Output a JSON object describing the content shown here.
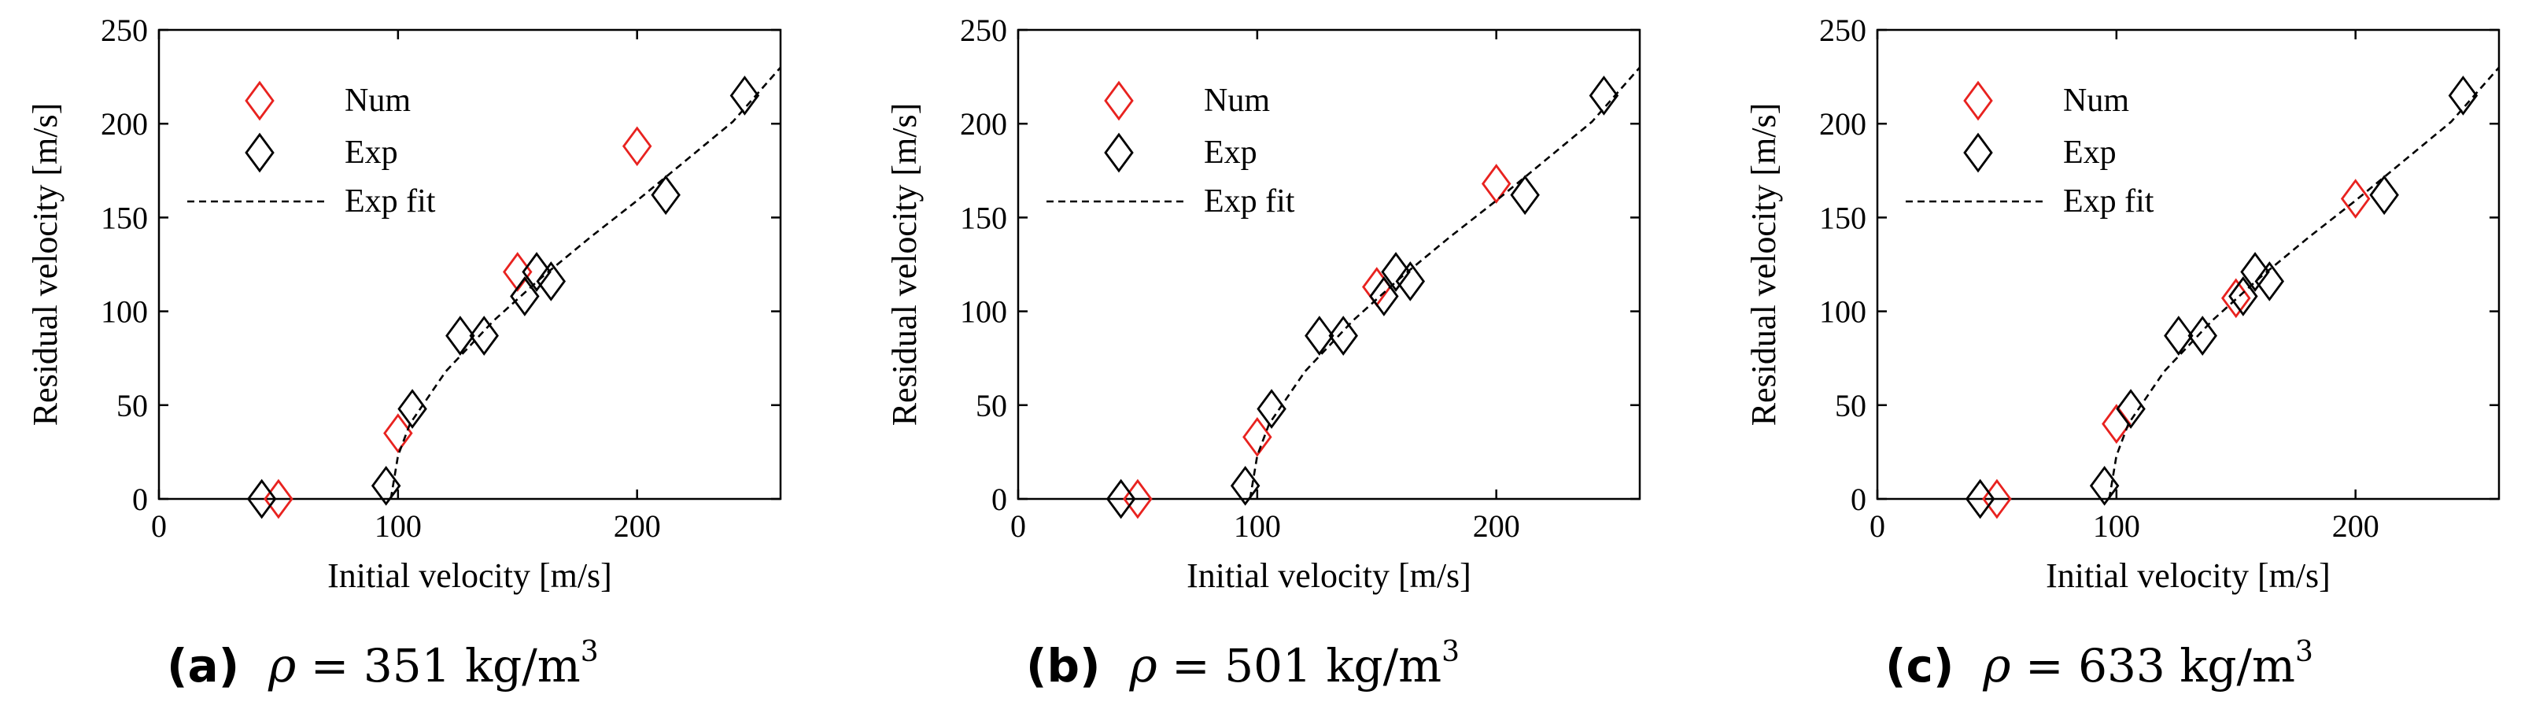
{
  "chart_data": [
    {
      "type": "scatter",
      "caption_letter": "a",
      "caption_symbol": "ρ",
      "caption_value": "351",
      "caption_unit": "kg/m",
      "caption_exp": "3",
      "xlabel": "Initial velocity [m/s]",
      "ylabel": "Residual velocity [m/s]",
      "xlim": [
        0,
        260
      ],
      "ylim": [
        0,
        250
      ],
      "xticks": [
        "0",
        "100",
        "200"
      ],
      "yticks": [
        "0",
        "50",
        "100",
        "150",
        "200",
        "250"
      ],
      "legend_position": "top-left",
      "series": [
        {
          "name": "Num",
          "color": "#e8221f",
          "marker": "diamond",
          "points": [
            [
              50,
              0
            ],
            [
              100,
              35
            ],
            [
              150,
              121
            ],
            [
              200,
              188
            ]
          ]
        },
        {
          "name": "Exp",
          "color": "#000000",
          "marker": "diamond",
          "points": [
            [
              43,
              0
            ],
            [
              95,
              7
            ],
            [
              106,
              48
            ],
            [
              126,
              87
            ],
            [
              136,
              87
            ],
            [
              153,
              108
            ],
            [
              158,
              121
            ],
            [
              164,
              116
            ],
            [
              212,
              162
            ],
            [
              245,
              215
            ]
          ]
        },
        {
          "name": "Exp fit",
          "color": "#000000",
          "line": "dashed",
          "points": [
            [
              97,
              0
            ],
            [
              100,
              23
            ],
            [
              105,
              40
            ],
            [
              120,
              68
            ],
            [
              140,
              95
            ],
            [
              160,
              118
            ],
            [
              180,
              139
            ],
            [
              200,
              159
            ],
            [
              220,
              180
            ],
            [
              240,
              201
            ],
            [
              260,
              230
            ]
          ]
        }
      ]
    },
    {
      "type": "scatter",
      "caption_letter": "b",
      "caption_symbol": "ρ",
      "caption_value": "501",
      "caption_unit": "kg/m",
      "caption_exp": "3",
      "xlabel": "Initial velocity [m/s]",
      "ylabel": "Residual velocity [m/s]",
      "xlim": [
        0,
        260
      ],
      "ylim": [
        0,
        250
      ],
      "xticks": [
        "0",
        "100",
        "200"
      ],
      "yticks": [
        "0",
        "50",
        "100",
        "150",
        "200",
        "250"
      ],
      "legend_position": "top-left",
      "series": [
        {
          "name": "Num",
          "color": "#e8221f",
          "marker": "diamond",
          "points": [
            [
              50,
              0
            ],
            [
              100,
              33
            ],
            [
              150,
              113
            ],
            [
              200,
              168
            ]
          ]
        },
        {
          "name": "Exp",
          "color": "#000000",
          "marker": "diamond",
          "points": [
            [
              43,
              0
            ],
            [
              95,
              7
            ],
            [
              106,
              48
            ],
            [
              126,
              87
            ],
            [
              136,
              87
            ],
            [
              153,
              108
            ],
            [
              158,
              121
            ],
            [
              164,
              116
            ],
            [
              212,
              162
            ],
            [
              245,
              215
            ]
          ]
        },
        {
          "name": "Exp fit",
          "color": "#000000",
          "line": "dashed",
          "points": [
            [
              97,
              0
            ],
            [
              100,
              23
            ],
            [
              105,
              40
            ],
            [
              120,
              68
            ],
            [
              140,
              95
            ],
            [
              160,
              118
            ],
            [
              180,
              139
            ],
            [
              200,
              159
            ],
            [
              220,
              180
            ],
            [
              240,
              201
            ],
            [
              260,
              230
            ]
          ]
        }
      ]
    },
    {
      "type": "scatter",
      "caption_letter": "c",
      "caption_symbol": "ρ",
      "caption_value": "633",
      "caption_unit": "kg/m",
      "caption_exp": "3",
      "xlabel": "Initial velocity [m/s]",
      "ylabel": "Residual velocity [m/s]",
      "xlim": [
        0,
        260
      ],
      "ylim": [
        0,
        250
      ],
      "xticks": [
        "0",
        "100",
        "200"
      ],
      "yticks": [
        "0",
        "50",
        "100",
        "150",
        "200",
        "250"
      ],
      "legend_position": "top-left",
      "series": [
        {
          "name": "Num",
          "color": "#e8221f",
          "marker": "diamond",
          "points": [
            [
              50,
              0
            ],
            [
              100,
              40
            ],
            [
              150,
              107
            ],
            [
              200,
              160
            ]
          ]
        },
        {
          "name": "Exp",
          "color": "#000000",
          "marker": "diamond",
          "points": [
            [
              43,
              0
            ],
            [
              95,
              7
            ],
            [
              106,
              48
            ],
            [
              126,
              87
            ],
            [
              136,
              87
            ],
            [
              153,
              108
            ],
            [
              158,
              121
            ],
            [
              164,
              116
            ],
            [
              212,
              162
            ],
            [
              245,
              215
            ]
          ]
        },
        {
          "name": "Exp fit",
          "color": "#000000",
          "line": "dashed",
          "points": [
            [
              97,
              0
            ],
            [
              100,
              23
            ],
            [
              105,
              40
            ],
            [
              120,
              68
            ],
            [
              140,
              95
            ],
            [
              160,
              118
            ],
            [
              180,
              139
            ],
            [
              200,
              159
            ],
            [
              220,
              180
            ],
            [
              240,
              201
            ],
            [
              260,
              230
            ]
          ]
        }
      ]
    }
  ]
}
